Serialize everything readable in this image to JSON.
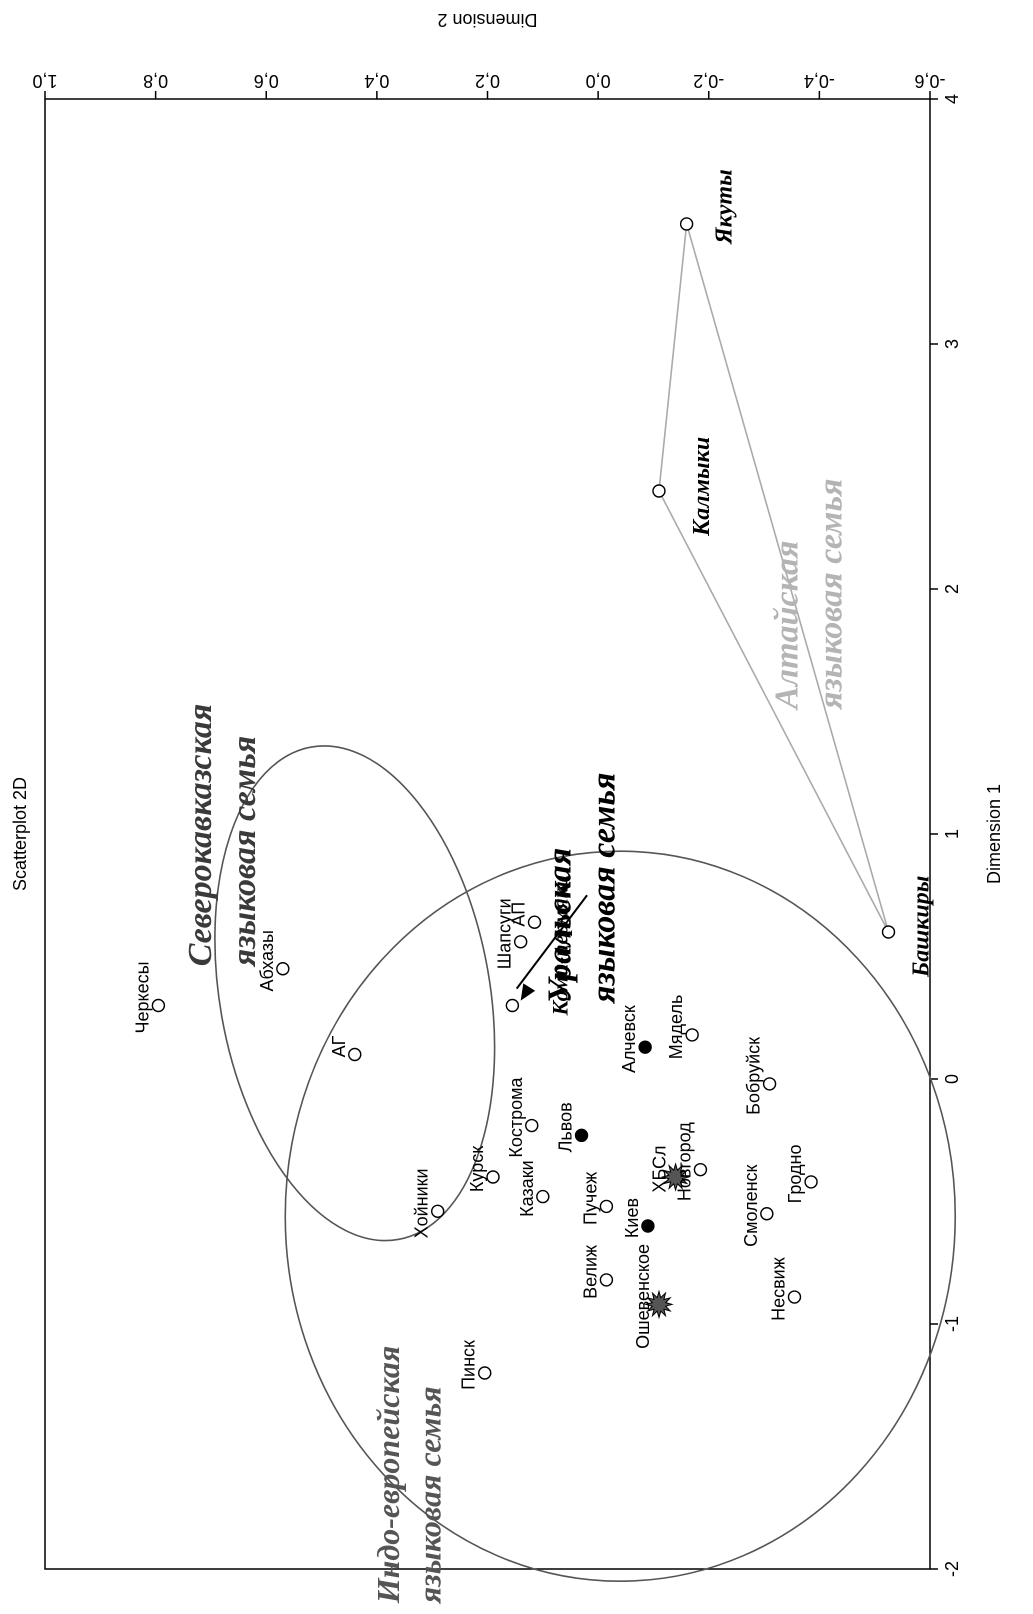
{
  "chart_data": {
    "type": "scatter",
    "title": "Scatterplot 2D",
    "xlabel": "Dimension 1",
    "ylabel": "Dimension 2",
    "xlim": [
      -2,
      4
    ],
    "ylim": [
      -0.6,
      1.0
    ],
    "x_ticks": [
      "-2",
      "-1",
      "0",
      "1",
      "2",
      "3",
      "4"
    ],
    "y_ticks": [
      "1,0",
      "0,8",
      "0,6",
      "0,4",
      "0,2",
      "0,0",
      "-0,2",
      "-0,4",
      "-0,6"
    ],
    "points": [
      {
        "label": "Якуты",
        "x": 3.49,
        "y": -0.16,
        "marker": "open",
        "label_style": "family"
      },
      {
        "label": "Калмыки",
        "x": 2.4,
        "y": -0.11,
        "marker": "open",
        "label_style": "family"
      },
      {
        "label": "Башкиры",
        "x": 0.6,
        "y": -0.525,
        "marker": "open",
        "label_style": "family"
      },
      {
        "label": "Черкесы",
        "x": 0.3,
        "y": 0.795,
        "marker": "open"
      },
      {
        "label": "Абхазы",
        "x": 0.45,
        "y": 0.57,
        "marker": "open"
      },
      {
        "label": "АГ",
        "x": 0.1,
        "y": 0.44,
        "marker": "open"
      },
      {
        "label": "АП",
        "x": 0.64,
        "y": 0.115,
        "marker": "open"
      },
      {
        "label": "Шапсуги",
        "x": 0.56,
        "y": 0.14,
        "marker": "open"
      },
      {
        "label": "Коми-пермяки",
        "x": 0.3,
        "y": 0.155,
        "marker": "open",
        "label_style": "family"
      },
      {
        "label": "Алчевск",
        "x": 0.13,
        "y": -0.085,
        "marker": "filled"
      },
      {
        "label": "Мядель",
        "x": 0.18,
        "y": -0.17,
        "marker": "open"
      },
      {
        "label": "Бобруйск",
        "x": -0.02,
        "y": -0.31,
        "marker": "open"
      },
      {
        "label": "Кострома",
        "x": -0.19,
        "y": 0.12,
        "marker": "open"
      },
      {
        "label": "Львов",
        "x": -0.23,
        "y": 0.03,
        "marker": "filled"
      },
      {
        "label": "Курск",
        "x": -0.4,
        "y": 0.19,
        "marker": "open"
      },
      {
        "label": "Казаки",
        "x": -0.48,
        "y": 0.1,
        "marker": "open"
      },
      {
        "label": "Хойники",
        "x": -0.54,
        "y": 0.29,
        "marker": "open"
      },
      {
        "label": "ХБСл",
        "x": -0.4,
        "y": -0.14,
        "marker": "star"
      },
      {
        "label": "Новгород",
        "x": -0.37,
        "y": -0.185,
        "marker": "open"
      },
      {
        "label": "Пучеж",
        "x": -0.52,
        "y": -0.015,
        "marker": "open"
      },
      {
        "label": "Киев",
        "x": -0.6,
        "y": -0.09,
        "marker": "filled"
      },
      {
        "label": "Гродно",
        "x": -0.42,
        "y": -0.385,
        "marker": "open"
      },
      {
        "label": "Смоленск",
        "x": -0.55,
        "y": -0.305,
        "marker": "open"
      },
      {
        "label": "Велиж",
        "x": -0.82,
        "y": -0.015,
        "marker": "open"
      },
      {
        "label": "Ошевенское",
        "x": -0.92,
        "y": -0.11,
        "marker": "star"
      },
      {
        "label": "Несвиж",
        "x": -0.89,
        "y": -0.355,
        "marker": "open"
      },
      {
        "label": "Пинск",
        "x": -1.2,
        "y": 0.205,
        "marker": "open"
      }
    ],
    "groups": [
      {
        "name": "Алтайская языковая семья"
      },
      {
        "name": "Северокавказская языковая семья"
      },
      {
        "name": "Уральская языковая семья"
      },
      {
        "name": "Индо-европейская языковая семья"
      }
    ]
  }
}
